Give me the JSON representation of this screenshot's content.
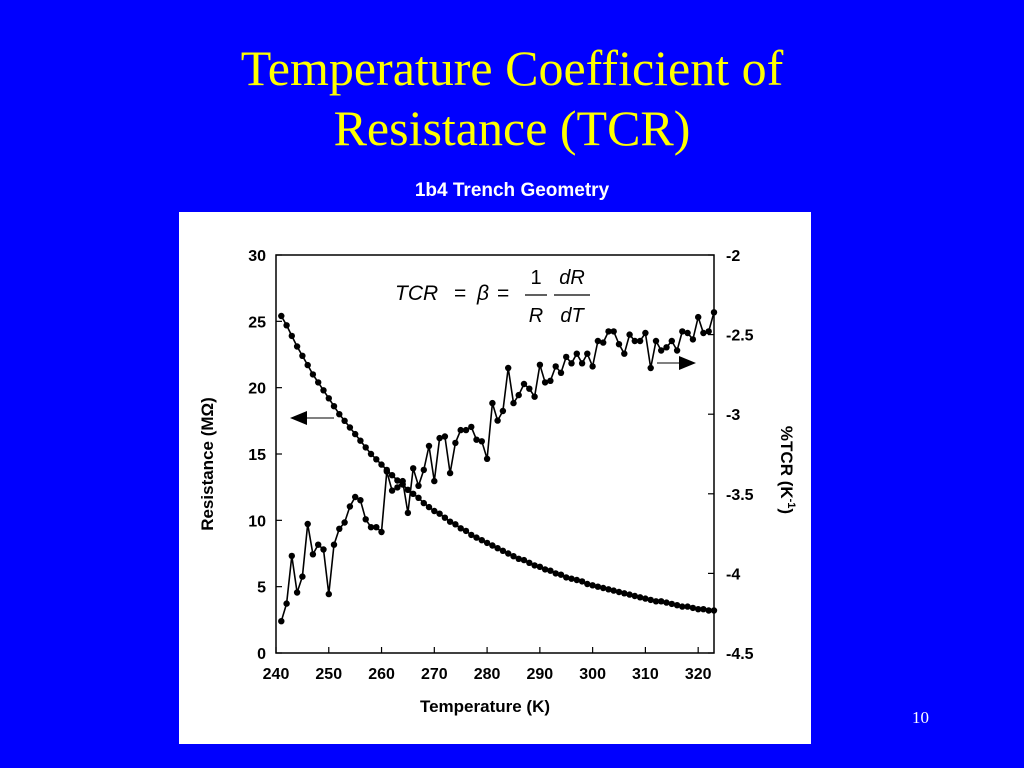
{
  "slide": {
    "title_line1": "Temperature Coefficient of",
    "title_line2": "Resistance (TCR)",
    "page_number": "10"
  },
  "colors": {
    "background": "#0000ff",
    "title": "#ffff00",
    "chart_title": "#ffffff",
    "panel": "#ffffff",
    "series": "#000000"
  },
  "chart_data": {
    "type": "line",
    "title": "1b4 Trench Geometry",
    "xlabel": "Temperature (K)",
    "ylabel_left": "Resistance (MΩ)",
    "ylabel_right_main": "%TCR (K",
    "ylabel_right_sup": "-1",
    "ylabel_right_close": ")",
    "xlim": [
      240,
      323
    ],
    "ylim_left": [
      0,
      30
    ],
    "ylim_right": [
      -4.5,
      -2
    ],
    "x_ticks": [
      "240",
      "250",
      "260",
      "270",
      "280",
      "290",
      "300",
      "310",
      "320"
    ],
    "y_ticks_left": [
      "0",
      "5",
      "10",
      "15",
      "20",
      "25",
      "30"
    ],
    "y_ticks_right": [
      "-4.5",
      "-4",
      "-3.5",
      "-3",
      "-2.5",
      "-2"
    ],
    "equation": {
      "lhs": "TCR",
      "equals": "=",
      "beta": "β",
      "numerator_1": "1",
      "denominator_1": "R",
      "numerator_2": "dR",
      "denominator_2": "dT"
    },
    "grid": false,
    "series": [
      {
        "axis": "left",
        "x": [
          241,
          242,
          243,
          244,
          245,
          246,
          247,
          248,
          249,
          250,
          251,
          252,
          253,
          254,
          255,
          256,
          257,
          258,
          259,
          260,
          261,
          262,
          263,
          264,
          265,
          266,
          267,
          268,
          269,
          270,
          271,
          272,
          273,
          274,
          275,
          276,
          277,
          278,
          279,
          280,
          281,
          282,
          283,
          284,
          285,
          286,
          287,
          288,
          289,
          290,
          291,
          292,
          293,
          294,
          295,
          296,
          297,
          298,
          299,
          300,
          301,
          302,
          303,
          304,
          305,
          306,
          307,
          308,
          309,
          310,
          311,
          312,
          313,
          314,
          315,
          316,
          317,
          318,
          319,
          320,
          321,
          322,
          323
        ],
        "values": [
          25.4,
          24.7,
          23.9,
          23.1,
          22.4,
          21.7,
          21.0,
          20.4,
          19.8,
          19.2,
          18.6,
          18.0,
          17.5,
          17.0,
          16.5,
          16.0,
          15.5,
          15.0,
          14.6,
          14.2,
          13.8,
          13.4,
          13.0,
          12.7,
          12.3,
          12.0,
          11.7,
          11.3,
          11.0,
          10.7,
          10.5,
          10.2,
          9.9,
          9.7,
          9.4,
          9.2,
          8.9,
          8.7,
          8.5,
          8.3,
          8.1,
          7.9,
          7.7,
          7.5,
          7.3,
          7.1,
          7.0,
          6.8,
          6.6,
          6.5,
          6.3,
          6.2,
          6.0,
          5.9,
          5.7,
          5.6,
          5.5,
          5.4,
          5.2,
          5.1,
          5.0,
          4.9,
          4.8,
          4.7,
          4.6,
          4.5,
          4.4,
          4.3,
          4.2,
          4.1,
          4.0,
          3.9,
          3.9,
          3.8,
          3.7,
          3.6,
          3.5,
          3.5,
          3.4,
          3.3,
          3.3,
          3.2,
          3.2
        ]
      },
      {
        "axis": "right",
        "x": [
          241,
          242,
          243,
          244,
          245,
          246,
          247,
          248,
          249,
          250,
          251,
          252,
          253,
          254,
          255,
          256,
          257,
          258,
          259,
          260,
          261,
          262,
          263,
          264,
          265,
          266,
          267,
          268,
          269,
          270,
          271,
          272,
          273,
          274,
          275,
          276,
          277,
          278,
          279,
          280,
          281,
          282,
          283,
          284,
          285,
          286,
          287,
          288,
          289,
          290,
          291,
          292,
          293,
          294,
          295,
          296,
          297,
          298,
          299,
          300,
          301,
          302,
          303,
          304,
          305,
          306,
          307,
          308,
          309,
          310,
          311,
          312,
          313,
          314,
          315,
          316,
          317,
          318,
          319,
          320,
          321,
          322,
          323
        ],
        "values": [
          -4.3,
          -4.19,
          -3.89,
          -4.12,
          -4.02,
          -3.69,
          -3.88,
          -3.82,
          -3.85,
          -4.13,
          -3.82,
          -3.72,
          -3.68,
          -3.58,
          -3.52,
          -3.54,
          -3.66,
          -3.71,
          -3.71,
          -3.74,
          -3.36,
          -3.48,
          -3.46,
          -3.42,
          -3.62,
          -3.34,
          -3.45,
          -3.35,
          -3.2,
          -3.42,
          -3.15,
          -3.14,
          -3.37,
          -3.18,
          -3.1,
          -3.1,
          -3.08,
          -3.16,
          -3.17,
          -3.28,
          -2.93,
          -3.04,
          -2.98,
          -2.71,
          -2.93,
          -2.88,
          -2.81,
          -2.84,
          -2.89,
          -2.69,
          -2.8,
          -2.79,
          -2.7,
          -2.74,
          -2.64,
          -2.68,
          -2.62,
          -2.68,
          -2.62,
          -2.7,
          -2.54,
          -2.55,
          -2.48,
          -2.48,
          -2.56,
          -2.62,
          -2.5,
          -2.54,
          -2.54,
          -2.49,
          -2.71,
          -2.54,
          -2.6,
          -2.58,
          -2.54,
          -2.6,
          -2.48,
          -2.49,
          -2.53,
          -2.39,
          -2.49,
          -2.48,
          -2.36
        ]
      }
    ],
    "arrows": [
      {
        "direction": "left",
        "points_to": "left axis"
      },
      {
        "direction": "right",
        "points_to": "right axis"
      }
    ]
  }
}
